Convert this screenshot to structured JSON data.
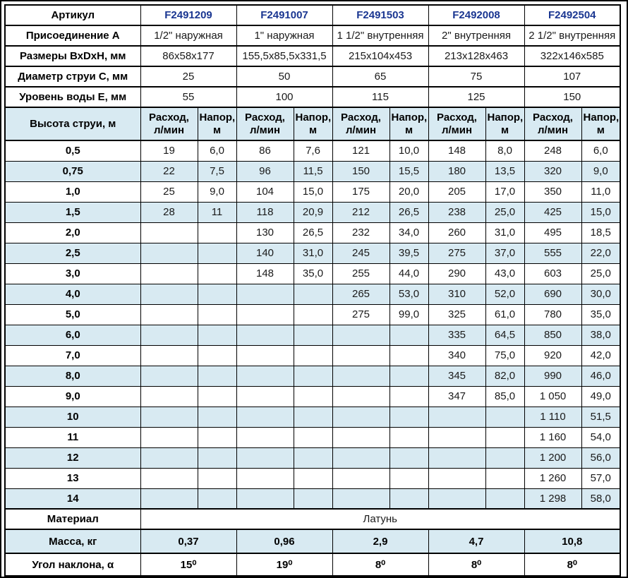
{
  "table": {
    "header_rows": [
      {
        "label": "Артикул",
        "values": [
          "F2491209",
          "F2491007",
          "F2491503",
          "F2492008",
          "F2492504"
        ]
      },
      {
        "label": "Присоединение А",
        "values": [
          "1/2\" наружная",
          "1\" наружная",
          "1 1/2\" внутренняя",
          "2\" внутренняя",
          "2 1/2\" внутренняя"
        ]
      },
      {
        "label": "Размеры ВхDхН, мм",
        "values": [
          "86х58х177",
          "155,5х85,5х331,5",
          "215х104х453",
          "213х128х463",
          "322х146х585"
        ]
      },
      {
        "label": "Диаметр струи С, мм",
        "values": [
          "25",
          "50",
          "65",
          "75",
          "107"
        ]
      },
      {
        "label": "Уровень воды Е, мм",
        "values": [
          "55",
          "100",
          "115",
          "125",
          "150"
        ]
      }
    ],
    "jet_header_label": "Высота струи, м",
    "sub_headers": [
      "Расход,\nл/мин",
      "Напор,\nм"
    ],
    "data_rows": [
      {
        "height": "0,5",
        "cells": [
          "19",
          "6,0",
          "86",
          "7,6",
          "121",
          "10,0",
          "148",
          "8,0",
          "248",
          "6,0"
        ]
      },
      {
        "height": "0,75",
        "cells": [
          "22",
          "7,5",
          "96",
          "11,5",
          "150",
          "15,5",
          "180",
          "13,5",
          "320",
          "9,0"
        ]
      },
      {
        "height": "1,0",
        "cells": [
          "25",
          "9,0",
          "104",
          "15,0",
          "175",
          "20,0",
          "205",
          "17,0",
          "350",
          "11,0"
        ]
      },
      {
        "height": "1,5",
        "cells": [
          "28",
          "11",
          "118",
          "20,9",
          "212",
          "26,5",
          "238",
          "25,0",
          "425",
          "15,0"
        ]
      },
      {
        "height": "2,0",
        "cells": [
          "",
          "",
          "130",
          "26,5",
          "232",
          "34,0",
          "260",
          "31,0",
          "495",
          "18,5"
        ]
      },
      {
        "height": "2,5",
        "cells": [
          "",
          "",
          "140",
          "31,0",
          "245",
          "39,5",
          "275",
          "37,0",
          "555",
          "22,0"
        ]
      },
      {
        "height": "3,0",
        "cells": [
          "",
          "",
          "148",
          "35,0",
          "255",
          "44,0",
          "290",
          "43,0",
          "603",
          "25,0"
        ]
      },
      {
        "height": "4,0",
        "cells": [
          "",
          "",
          "",
          "",
          "265",
          "53,0",
          "310",
          "52,0",
          "690",
          "30,0"
        ]
      },
      {
        "height": "5,0",
        "cells": [
          "",
          "",
          "",
          "",
          "275",
          "99,0",
          "325",
          "61,0",
          "780",
          "35,0"
        ]
      },
      {
        "height": "6,0",
        "cells": [
          "",
          "",
          "",
          "",
          "",
          "",
          "335",
          "64,5",
          "850",
          "38,0"
        ]
      },
      {
        "height": "7,0",
        "cells": [
          "",
          "",
          "",
          "",
          "",
          "",
          "340",
          "75,0",
          "920",
          "42,0"
        ]
      },
      {
        "height": "8,0",
        "cells": [
          "",
          "",
          "",
          "",
          "",
          "",
          "345",
          "82,0",
          "990",
          "46,0"
        ]
      },
      {
        "height": "9,0",
        "cells": [
          "",
          "",
          "",
          "",
          "",
          "",
          "347",
          "85,0",
          "1 050",
          "49,0"
        ]
      },
      {
        "height": "10",
        "cells": [
          "",
          "",
          "",
          "",
          "",
          "",
          "",
          "",
          "1 110",
          "51,5"
        ]
      },
      {
        "height": "11",
        "cells": [
          "",
          "",
          "",
          "",
          "",
          "",
          "",
          "",
          "1 160",
          "54,0"
        ]
      },
      {
        "height": "12",
        "cells": [
          "",
          "",
          "",
          "",
          "",
          "",
          "",
          "",
          "1 200",
          "56,0"
        ]
      },
      {
        "height": "13",
        "cells": [
          "",
          "",
          "",
          "",
          "",
          "",
          "",
          "",
          "1 260",
          "57,0"
        ]
      },
      {
        "height": "14",
        "cells": [
          "",
          "",
          "",
          "",
          "",
          "",
          "",
          "",
          "1 298",
          "58,0"
        ]
      }
    ],
    "footer": {
      "material_label": "Материал",
      "material_value": "Латунь",
      "mass_label": "Масса, кг",
      "mass_values": [
        "0,37",
        "0,96",
        "2,9",
        "4,7",
        "10,8"
      ],
      "angle_label": "Угол наклона, α",
      "angle_values": [
        "15⁰",
        "19⁰",
        "8⁰",
        "8⁰",
        "8⁰"
      ]
    }
  },
  "colors": {
    "stripe": "#d8eaf2",
    "article_blue": "#1a3691",
    "border": "#000000",
    "background": "#ffffff"
  }
}
